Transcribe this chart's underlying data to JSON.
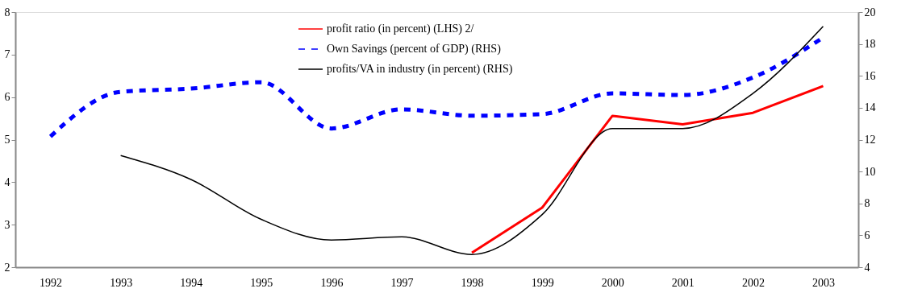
{
  "chart_data": {
    "type": "line",
    "categories": [
      "1992",
      "1993",
      "1994",
      "1995",
      "1996",
      "1997",
      "1998",
      "1999",
      "2000",
      "2001",
      "2002",
      "2003"
    ],
    "series": [
      {
        "name": "profit ratio (in percent) (LHS) 2/",
        "color": "#ff0000",
        "line_style": "solid",
        "values": [
          null,
          null,
          null,
          null,
          null,
          null,
          2.34,
          3.4,
          5.56,
          5.36,
          5.63,
          6.26
        ]
      },
      {
        "name": "Own Savings (percent of GDP) (RHS)",
        "color": "#0000ff",
        "line_style": "dashed",
        "axis": "y2",
        "values": [
          12.2,
          15.0,
          15.2,
          15.6,
          12.7,
          13.9,
          13.5,
          13.6,
          14.9,
          14.8,
          15.9,
          18.4
        ]
      },
      {
        "name": "profits/VA in industry (in percent) (RHS)",
        "color": "#000000",
        "line_style": "solid",
        "axis": "y2",
        "values": [
          null,
          11.0,
          9.5,
          7.0,
          5.7,
          5.9,
          4.8,
          7.3,
          12.7,
          12.7,
          14.9,
          19.1
        ]
      }
    ],
    "ylim": [
      2,
      8
    ],
    "yticks": [
      2,
      3,
      4,
      5,
      6,
      7,
      8
    ],
    "y2lim": [
      4,
      20
    ],
    "y2ticks": [
      4,
      6,
      8,
      10,
      12,
      14,
      16,
      18,
      20
    ],
    "grid": false,
    "legend": "top",
    "marker": "none"
  }
}
